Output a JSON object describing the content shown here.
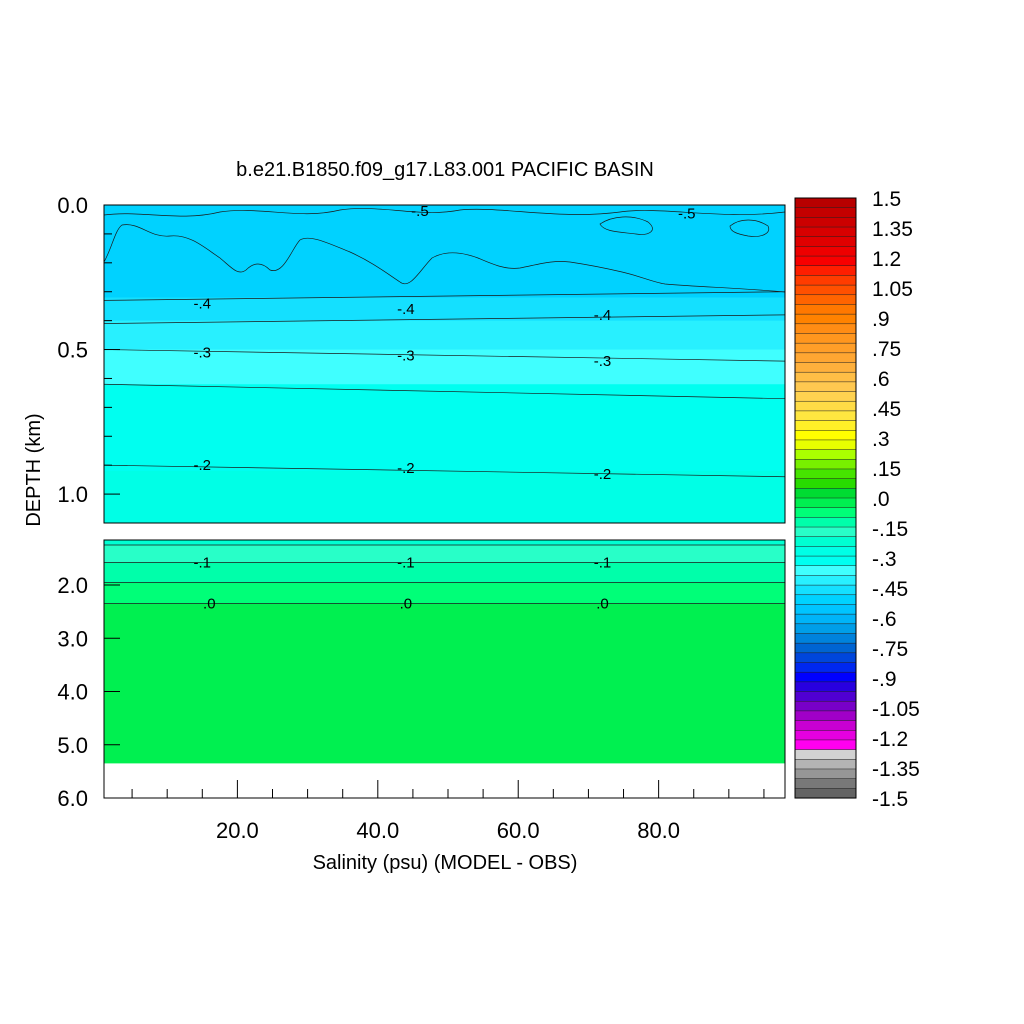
{
  "chart_data": {
    "type": "heatmap",
    "title": "b.e21.B1850.f09_g17.L83.001 PACIFIC BASIN",
    "xlabel": "Salinity (psu) (MODEL - OBS)",
    "ylabel": "DEPTH (km)",
    "xlim": [
      1,
      98
    ],
    "x_ticks": [
      20,
      40,
      60,
      80
    ],
    "x_tick_labels": [
      "20.0",
      "40.0",
      "60.0",
      "80.0"
    ],
    "y_panels": [
      {
        "ylim": [
          0,
          1.1
        ],
        "y_ticks": [
          0.0,
          0.5,
          1.0
        ],
        "y_tick_labels": [
          "0.0",
          "0.5",
          "1.0"
        ]
      },
      {
        "ylim": [
          1.1,
          6.0
        ],
        "y_ticks": [
          2.0,
          3.0,
          4.0,
          5.0,
          6.0
        ],
        "y_tick_labels": [
          "2.0",
          "3.0",
          "4.0",
          "5.0",
          "6.0"
        ]
      }
    ],
    "colorbar": {
      "tick_values": [
        1.5,
        1.35,
        1.2,
        1.05,
        0.9,
        0.75,
        0.6,
        0.45,
        0.3,
        0.15,
        0.0,
        -0.15,
        -0.3,
        -0.45,
        -0.6,
        -0.75,
        -0.9,
        -1.05,
        -1.2,
        -1.35,
        -1.5
      ],
      "tick_labels": [
        "1.5",
        "1.35",
        "1.2",
        "1.05",
        ".9",
        ".75",
        ".6",
        ".45",
        ".3",
        ".15",
        ".0",
        "-.15",
        "-.3",
        "-.45",
        "-.6",
        "-.75",
        "-.9",
        "-1.05",
        "-1.2",
        "-1.35",
        "-1.5"
      ],
      "colors_top_to_bottom": [
        "#b80000",
        "#c40000",
        "#cc0000",
        "#d80000",
        "#e00000",
        "#ee0000",
        "#f80000",
        "#ff1e00",
        "#ff3c00",
        "#ff5000",
        "#ff6400",
        "#ff7800",
        "#ff8200",
        "#ff8c14",
        "#ff961e",
        "#ff9e28",
        "#ffa632",
        "#ffb03c",
        "#ffbe46",
        "#ffc850",
        "#ffd250",
        "#ffdc46",
        "#ffe640",
        "#fff028",
        "#ffff00",
        "#e8ff00",
        "#aaff00",
        "#78f000",
        "#46e400",
        "#28dc00",
        "#00dc32",
        "#00f050",
        "#00ff78",
        "#00ffaa",
        "#28ffc8",
        "#00ffd2",
        "#00ffe6",
        "#00fff0",
        "#40ffff",
        "#28f0ff",
        "#14e0ff",
        "#00d2ff",
        "#00c4ff",
        "#00b4f8",
        "#009ee8",
        "#0082dc",
        "#0064d2",
        "#0046dc",
        "#0028f0",
        "#0000ff",
        "#2800e0",
        "#5000d2",
        "#7800c8",
        "#a000c8",
        "#c800d2",
        "#e600e0",
        "#ff00f0",
        "#d2d2d2",
        "#b4b4b4",
        "#969696",
        "#787878",
        "#646464"
      ]
    },
    "field_bands": {
      "top_panel": [
        {
          "from": 0.0,
          "to": 0.32,
          "value_range": [
            -0.6,
            -0.5
          ],
          "color": "#00d2ff"
        },
        {
          "from": 0.32,
          "to": 0.4,
          "value_range": [
            -0.45,
            -0.4
          ],
          "color": "#14e0ff"
        },
        {
          "from": 0.4,
          "to": 0.5,
          "value_range": [
            -0.4,
            -0.3
          ],
          "color": "#28f0ff"
        },
        {
          "from": 0.5,
          "to": 0.62,
          "value_range": [
            -0.3,
            -0.25
          ],
          "color": "#40ffff"
        },
        {
          "from": 0.62,
          "to": 0.92,
          "value_range": [
            -0.25,
            -0.2
          ],
          "color": "#00fff0"
        },
        {
          "from": 0.92,
          "to": 1.1,
          "value_range": [
            -0.2,
            -0.15
          ],
          "color": "#00ffe6"
        }
      ],
      "bottom_panel": [
        {
          "from": 1.1,
          "to": 1.2,
          "value_range": [
            -0.15,
            -0.1
          ],
          "color": "#00ffd2"
        },
        {
          "from": 1.2,
          "to": 1.55,
          "value_range": [
            -0.1,
            -0.05
          ],
          "color": "#28ffc8"
        },
        {
          "from": 1.55,
          "to": 1.95,
          "value_range": [
            -0.05,
            0.0
          ],
          "color": "#00ffaa"
        },
        {
          "from": 1.95,
          "to": 2.35,
          "value_range": [
            0.0,
            0.05
          ],
          "color": "#00ff78"
        },
        {
          "from": 2.35,
          "to": 5.35,
          "value_range": [
            0.05,
            0.15
          ],
          "color": "#00f050"
        }
      ]
    },
    "contour_labels": [
      {
        "text": "-.5",
        "x": 46,
        "y": 0.02
      },
      {
        "text": "-.5",
        "x": 84,
        "y": 0.03
      },
      {
        "text": "-.4",
        "x": 15,
        "y": 0.34
      },
      {
        "text": "-.4",
        "x": 44,
        "y": 0.36
      },
      {
        "text": "-.4",
        "x": 72,
        "y": 0.38
      },
      {
        "text": "-.3",
        "x": 15,
        "y": 0.51
      },
      {
        "text": "-.3",
        "x": 44,
        "y": 0.52
      },
      {
        "text": "-.3",
        "x": 72,
        "y": 0.54
      },
      {
        "text": "-.2",
        "x": 15,
        "y": 0.9
      },
      {
        "text": "-.2",
        "x": 44,
        "y": 0.91
      },
      {
        "text": "-.2",
        "x": 72,
        "y": 0.93
      },
      {
        "text": "-.1",
        "x": 15,
        "y": 1.55
      },
      {
        "text": "-.1",
        "x": 44,
        "y": 1.55
      },
      {
        "text": "-.1",
        "x": 72,
        "y": 1.55
      },
      {
        "text": ".0",
        "x": 16,
        "y": 2.35
      },
      {
        "text": ".0",
        "x": 44,
        "y": 2.35
      },
      {
        "text": ".0",
        "x": 72,
        "y": 2.35
      }
    ],
    "contour_lines": [
      {
        "panel": 0,
        "y_left": 0.33,
        "y_right": 0.3
      },
      {
        "panel": 0,
        "y_left": 0.41,
        "y_right": 0.38
      },
      {
        "panel": 0,
        "y_left": 0.5,
        "y_right": 0.54
      },
      {
        "panel": 0,
        "y_left": 0.62,
        "y_right": 0.67
      },
      {
        "panel": 0,
        "y_left": 0.9,
        "y_right": 0.94
      },
      {
        "panel": 1,
        "y_left": 1.2,
        "y_right": 1.2
      },
      {
        "panel": 1,
        "y_left": 1.55,
        "y_right": 1.55
      },
      {
        "panel": 1,
        "y_left": 1.95,
        "y_right": 1.95
      },
      {
        "panel": 1,
        "y_left": 2.35,
        "y_right": 2.35
      }
    ],
    "missing_below_depth": 5.35
  }
}
